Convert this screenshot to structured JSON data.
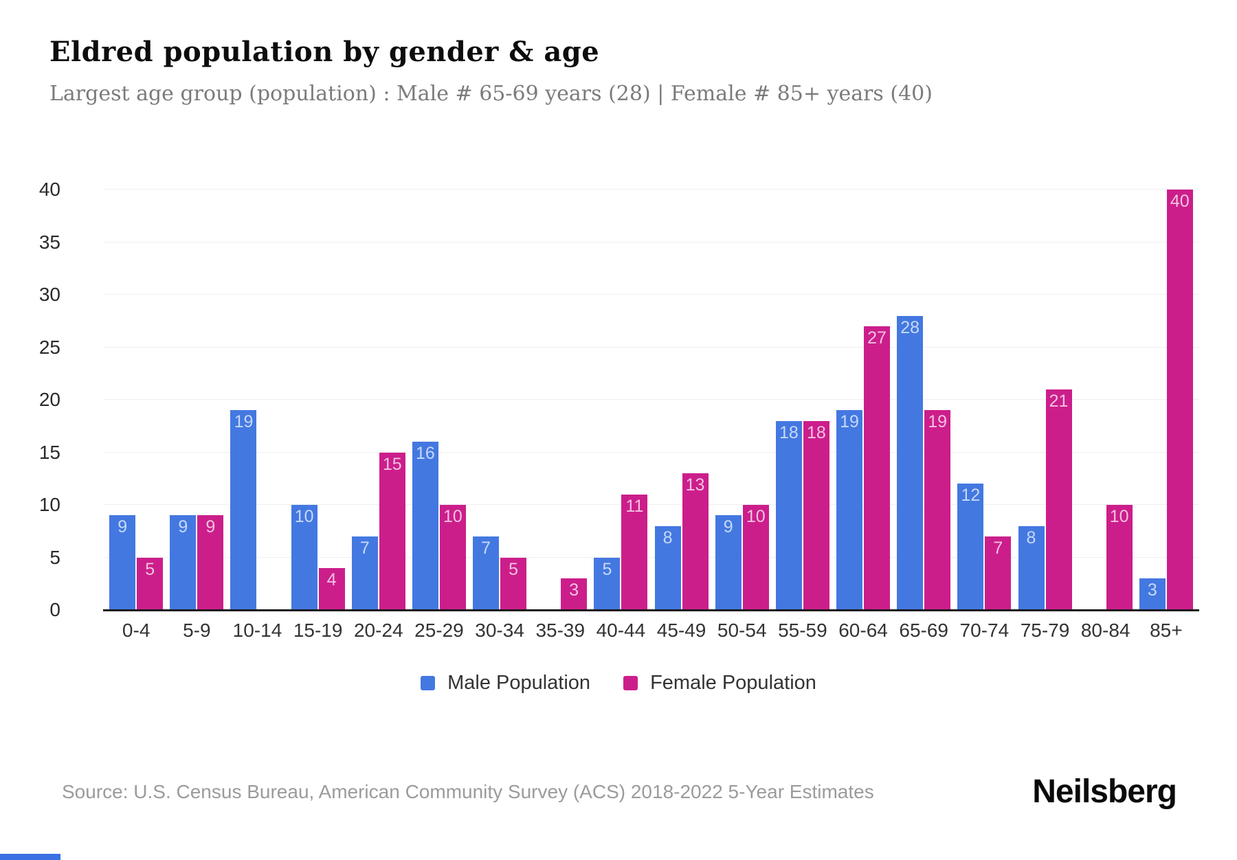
{
  "header": {
    "title": "Eldred population by gender & age",
    "subtitle": "Largest age group (population) : Male # 65-69 years (28) | Female # 85+ years (40)"
  },
  "chart_data": {
    "type": "bar",
    "title": "Eldred population by gender & age",
    "categories": [
      "0-4",
      "5-9",
      "10-14",
      "15-19",
      "20-24",
      "25-29",
      "30-34",
      "35-39",
      "40-44",
      "45-49",
      "50-54",
      "55-59",
      "60-64",
      "65-69",
      "70-74",
      "75-79",
      "80-84",
      "85+"
    ],
    "series": [
      {
        "name": "Male Population",
        "color": "#4478E1",
        "label_color": "#c6daf6",
        "values": [
          9,
          9,
          19,
          10,
          7,
          16,
          7,
          0,
          5,
          8,
          9,
          18,
          19,
          28,
          12,
          8,
          0,
          3
        ]
      },
      {
        "name": "Female Population",
        "color": "#CC1E8B",
        "label_color": "#f2c2e0",
        "values": [
          5,
          9,
          0,
          4,
          15,
          10,
          5,
          3,
          11,
          13,
          10,
          18,
          27,
          19,
          7,
          21,
          10,
          40
        ]
      }
    ],
    "ylim": [
      0,
      40
    ],
    "ytick_step": 5,
    "grid": true,
    "legend_position": "bottom",
    "data_labels": "inside-top"
  },
  "footer": {
    "source": "Source: U.S. Census Bureau, American Community Survey (ACS) 2018-2022 5-Year Estimates",
    "brand": "Neilsberg"
  },
  "accent": {
    "bottom_strip_color": "#3A70E2"
  }
}
